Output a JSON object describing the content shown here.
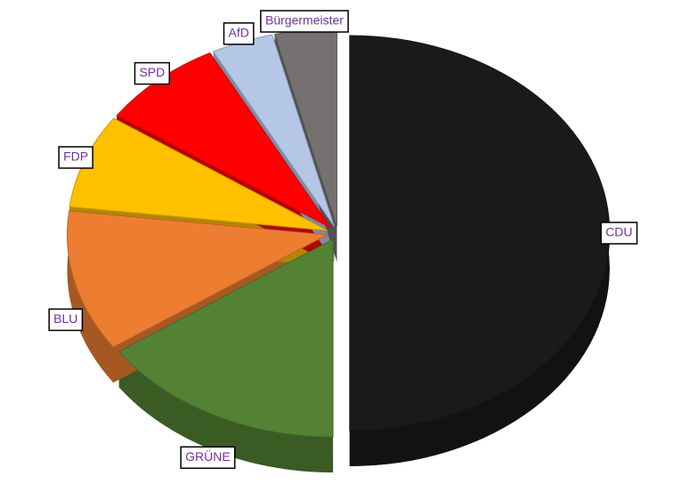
{
  "chart_data": {
    "type": "pie",
    "categories": [
      "CDU",
      "GRÜNE",
      "BLU",
      "FDP",
      "SPD",
      "AfD",
      "Bürgermeister"
    ],
    "values": [
      13,
      4,
      3,
      2,
      2,
      1,
      1
    ],
    "colors": [
      "#1a1a1a",
      "#548235",
      "#ed7d31",
      "#ffc000",
      "#ff0000",
      "#b4c7e7",
      "#767171"
    ]
  }
}
